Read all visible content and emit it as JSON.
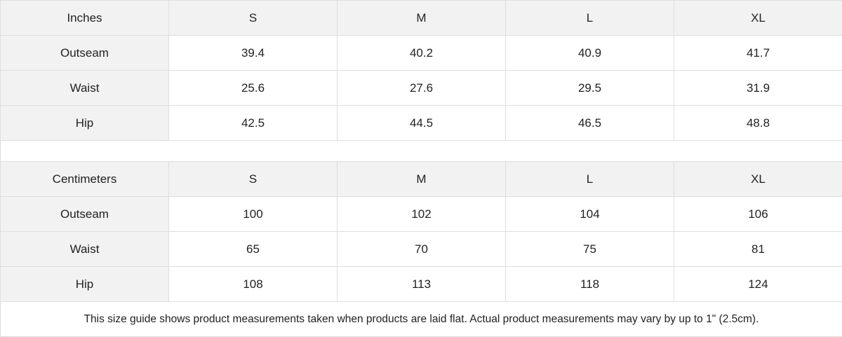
{
  "tables": [
    {
      "unit": "Inches",
      "sizes": [
        "S",
        "M",
        "L",
        "XL"
      ],
      "rows": [
        {
          "label": "Outseam",
          "values": [
            "39.4",
            "40.2",
            "40.9",
            "41.7"
          ]
        },
        {
          "label": "Waist",
          "values": [
            "25.6",
            "27.6",
            "29.5",
            "31.9"
          ]
        },
        {
          "label": "Hip",
          "values": [
            "42.5",
            "44.5",
            "46.5",
            "48.8"
          ]
        }
      ]
    },
    {
      "unit": "Centimeters",
      "sizes": [
        "S",
        "M",
        "L",
        "XL"
      ],
      "rows": [
        {
          "label": "Outseam",
          "values": [
            "100",
            "102",
            "104",
            "106"
          ]
        },
        {
          "label": "Waist",
          "values": [
            "65",
            "70",
            "75",
            "81"
          ]
        },
        {
          "label": "Hip",
          "values": [
            "108",
            "113",
            "118",
            "124"
          ]
        }
      ]
    }
  ],
  "note": "This size guide shows product measurements taken when products are laid flat.  Actual product measurements may vary by up to 1\" (2.5cm).",
  "colors": {
    "header_bg": "#f2f2f2",
    "border": "#dedede"
  }
}
